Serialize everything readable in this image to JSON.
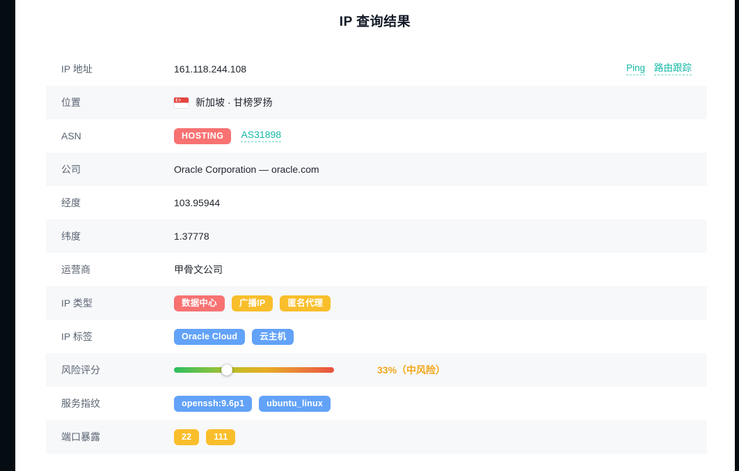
{
  "page": {
    "title": "IP 查询结果"
  },
  "colors": {
    "badge": {
      "red": "#f87272",
      "amber": "#f9be2b",
      "blue": "#62a2f8"
    },
    "link_teal": "#14b8a6",
    "risk_text": "#f2a71e"
  },
  "rows": [
    {
      "type": "text",
      "label": "IP 地址",
      "value": "161.118.244.108",
      "actions": [
        {
          "label": "Ping"
        },
        {
          "label": "路由跟踪"
        }
      ]
    },
    {
      "type": "location",
      "label": "位置",
      "value": "新加坡 · 甘榜罗扬",
      "flag": "singapore-flag"
    },
    {
      "type": "asn",
      "label": "ASN",
      "badge": "HOSTING",
      "badge_color": "red",
      "link": "AS31898"
    },
    {
      "type": "text",
      "label": "公司",
      "value": "Oracle Corporation — oracle.com"
    },
    {
      "type": "text",
      "label": "经度",
      "value": "103.95944"
    },
    {
      "type": "text",
      "label": "纬度",
      "value": "1.37778"
    },
    {
      "type": "text",
      "label": "运营商",
      "value": "甲骨文公司"
    },
    {
      "type": "badges",
      "label": "IP 类型",
      "badges": [
        {
          "text": "数据中心",
          "color": "red"
        },
        {
          "text": "广播IP",
          "color": "amber"
        },
        {
          "text": "匿名代理",
          "color": "amber"
        }
      ]
    },
    {
      "type": "badges",
      "label": "IP 标签",
      "badges": [
        {
          "text": "Oracle Cloud",
          "color": "blue"
        },
        {
          "text": "云主机",
          "color": "blue"
        }
      ]
    },
    {
      "type": "risk",
      "label": "风险评分",
      "percent": 33,
      "text": "33%（中风险）"
    },
    {
      "type": "badges",
      "label": "服务指纹",
      "badges": [
        {
          "text": "openssh:9.6p1",
          "color": "blue"
        },
        {
          "text": "ubuntu_linux",
          "color": "blue"
        }
      ]
    },
    {
      "type": "badges",
      "label": "端口暴露",
      "badges": [
        {
          "text": "22",
          "color": "amber"
        },
        {
          "text": "111",
          "color": "amber"
        }
      ]
    }
  ]
}
